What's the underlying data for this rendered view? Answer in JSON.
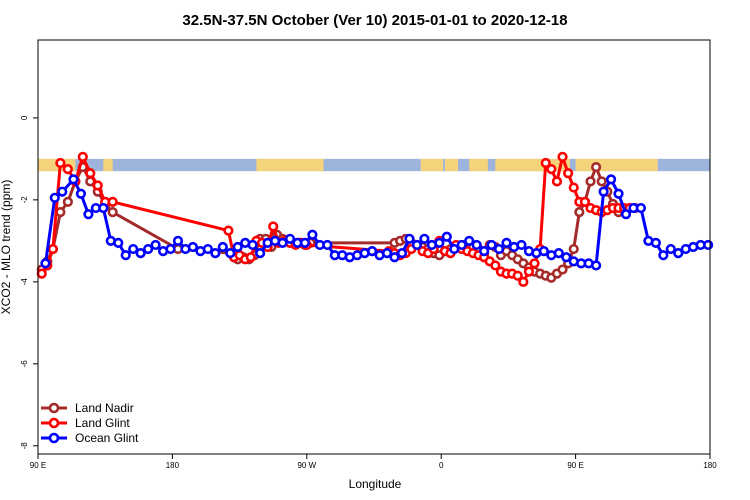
{
  "chart_data": {
    "type": "line",
    "title": "32.5N-37.5N October (Ver 10)   2015-01-01 to 2020-12-18",
    "xlabel": "Longitude",
    "ylabel": "XCO2 - MLO trend (ppm)",
    "xlim": [
      -90,
      270
    ],
    "ylim": [
      -8.2,
      1.9
    ],
    "x_ticks": [
      {
        "value": -90,
        "label": "90 E"
      },
      {
        "value": -18,
        "label": "180"
      },
      {
        "value": 54,
        "label": "90 W"
      },
      {
        "value": 126,
        "label": "0"
      },
      {
        "value": 198,
        "label": "90 E"
      },
      {
        "value": 270,
        "label": "180"
      }
    ],
    "y_ticks": [
      {
        "value": 0,
        "label": "0"
      },
      {
        "value": -2,
        "label": "-2"
      },
      {
        "value": -4,
        "label": "-4"
      },
      {
        "value": -6,
        "label": "-6"
      },
      {
        "value": -8,
        "label": "-8"
      }
    ],
    "grid": false,
    "legend_position": "bottom-left",
    "land_strip": {
      "y_range": [
        -1.3,
        -1.0
      ],
      "ocean_color": "#9db4dc",
      "land_color": "#f5d37a",
      "land_segments": [
        [
          -90,
          -70
        ],
        [
          -55,
          -50
        ],
        [
          27,
          63
        ],
        [
          115,
          127
        ],
        [
          128,
          135
        ],
        [
          141,
          151
        ],
        [
          155,
          195
        ],
        [
          198,
          242
        ]
      ]
    },
    "series": [
      {
        "name": "Land Nadir",
        "color": "#a52a2a",
        "x": [
          -88,
          -85,
          -82,
          -78,
          -74,
          -70,
          -66,
          -62,
          -58,
          -54,
          -50,
          -15,
          14,
          17,
          20,
          23,
          26,
          29,
          32,
          35,
          38,
          41,
          44,
          47,
          50,
          53,
          56,
          101,
          104,
          107,
          110,
          113,
          116,
          119,
          122,
          125,
          128,
          131,
          134,
          137,
          140,
          143,
          146,
          149,
          152,
          155,
          158,
          161,
          164,
          167,
          170,
          173,
          176,
          179,
          182,
          185,
          188,
          191,
          194,
          197,
          200,
          203,
          206,
          209,
          212,
          215,
          218,
          221,
          224,
          227,
          230
        ],
        "y": [
          -3.7,
          -3.5,
          -3.2,
          -2.3,
          -2.05,
          -1.55,
          -1.2,
          -1.55,
          -1.8,
          -2.1,
          -2.3,
          -3.2,
          -3.3,
          -3.45,
          -3.4,
          -3.45,
          -3.35,
          -2.95,
          -2.95,
          -3.15,
          -2.85,
          -2.95,
          -3.0,
          -3.05,
          -3.05,
          -3.1,
          -3.05,
          -3.05,
          -3.0,
          -2.95,
          -3.05,
          -3.1,
          -3.15,
          -3.2,
          -3.3,
          -3.35,
          -3.25,
          -3.2,
          -3.15,
          -3.1,
          -3.2,
          -3.15,
          -3.2,
          -3.3,
          -3.1,
          -3.15,
          -3.35,
          -3.25,
          -3.35,
          -3.45,
          -3.55,
          -3.65,
          -3.75,
          -3.8,
          -3.85,
          -3.9,
          -3.8,
          -3.7,
          -3.55,
          -3.2,
          -2.3,
          -2.05,
          -1.55,
          -1.2,
          -1.55,
          -1.8,
          -2.1,
          -2.3,
          -2.25,
          -2.2,
          -2.2
        ]
      },
      {
        "name": "Land Glint",
        "color": "#ff0000",
        "x": [
          -88,
          -85,
          -82,
          -78,
          -74,
          -70,
          -66,
          -62,
          -58,
          -54,
          -50,
          12,
          15,
          18,
          21,
          24,
          27,
          30,
          33,
          36,
          39,
          42,
          45,
          48,
          51,
          54,
          98,
          101,
          104,
          107,
          110,
          113,
          116,
          119,
          122,
          125,
          128,
          131,
          134,
          137,
          140,
          143,
          146,
          149,
          152,
          155,
          158,
          161,
          164,
          167,
          170,
          173,
          176,
          179,
          182,
          185,
          188,
          191,
          194,
          197,
          200,
          203,
          206,
          209,
          212,
          215,
          218,
          221,
          224,
          227
        ],
        "y": [
          -3.8,
          -3.6,
          -3.2,
          -1.1,
          -1.25,
          -1.55,
          -0.95,
          -1.35,
          -1.65,
          -2.05,
          -2.05,
          -2.75,
          -3.4,
          -3.35,
          -3.45,
          -3.4,
          -3.0,
          -3.05,
          -3.15,
          -2.65,
          -3.05,
          -3.0,
          -3.05,
          -3.1,
          -3.05,
          -3.1,
          -3.25,
          -3.3,
          -3.35,
          -3.3,
          -3.2,
          -3.1,
          -3.25,
          -3.3,
          -3.2,
          -3.0,
          -3.25,
          -3.3,
          -3.1,
          -3.2,
          -3.25,
          -3.3,
          -3.35,
          -3.4,
          -3.5,
          -3.6,
          -3.75,
          -3.8,
          -3.8,
          -3.85,
          -4.0,
          -3.75,
          -3.55,
          -3.2,
          -1.1,
          -1.25,
          -1.55,
          -0.95,
          -1.35,
          -1.7,
          -2.05,
          -2.05,
          -2.2,
          -2.25,
          -2.3,
          -2.25,
          -2.2,
          -2.2,
          -2.2,
          -2.2
        ],
        "_note": ""
      },
      {
        "name": "Ocean Glint",
        "color": "#0000ff",
        "x": [
          -86,
          -81,
          -77,
          -71,
          -67,
          -63,
          -59,
          -55,
          -51,
          -47,
          -43,
          -39,
          -35,
          -31,
          -27,
          -23,
          -19,
          -15,
          -11,
          -7,
          -3,
          1,
          5,
          9,
          13,
          17,
          21,
          25,
          29,
          33,
          37,
          41,
          45,
          49,
          53,
          57,
          61,
          65,
          69,
          73,
          77,
          81,
          85,
          89,
          93,
          97,
          101,
          105,
          109,
          113,
          117,
          121,
          125,
          129,
          133,
          137,
          141,
          145,
          149,
          153,
          157,
          161,
          165,
          169,
          173,
          177,
          181,
          185,
          189,
          193,
          197,
          201,
          205,
          209,
          213,
          217,
          221,
          225,
          229,
          233,
          237,
          241,
          245,
          249,
          253,
          257,
          261,
          265,
          269
        ],
        "y": [
          -3.55,
          -1.95,
          -1.8,
          -1.5,
          -1.85,
          -2.35,
          -2.2,
          -2.2,
          -3.0,
          -3.05,
          -3.35,
          -3.2,
          -3.3,
          -3.2,
          -3.1,
          -3.25,
          -3.2,
          -3.0,
          -3.2,
          -3.15,
          -3.25,
          -3.2,
          -3.3,
          -3.15,
          -3.3,
          -3.15,
          -3.05,
          -3.1,
          -3.3,
          -3.05,
          -3.0,
          -3.05,
          -2.95,
          -3.05,
          -3.05,
          -2.85,
          -3.1,
          -3.1,
          -3.35,
          -3.35,
          -3.4,
          -3.35,
          -3.3,
          -3.25,
          -3.35,
          -3.3,
          -3.4,
          -3.3,
          -2.95,
          -3.1,
          -2.95,
          -3.1,
          -3.05,
          -2.9,
          -3.2,
          -3.1,
          -3.0,
          -3.1,
          -3.25,
          -3.1,
          -3.2,
          -3.05,
          -3.15,
          -3.1,
          -3.25,
          -3.3,
          -3.25,
          -3.35,
          -3.3,
          -3.4,
          -3.5,
          -3.55,
          -3.55,
          -3.6,
          -1.8,
          -1.5,
          -1.85,
          -2.35,
          -2.2,
          -2.2,
          -3.0,
          -3.05,
          -3.35,
          -3.2,
          -3.3,
          -3.2,
          -3.15,
          -3.1,
          -3.1
        ]
      }
    ]
  }
}
